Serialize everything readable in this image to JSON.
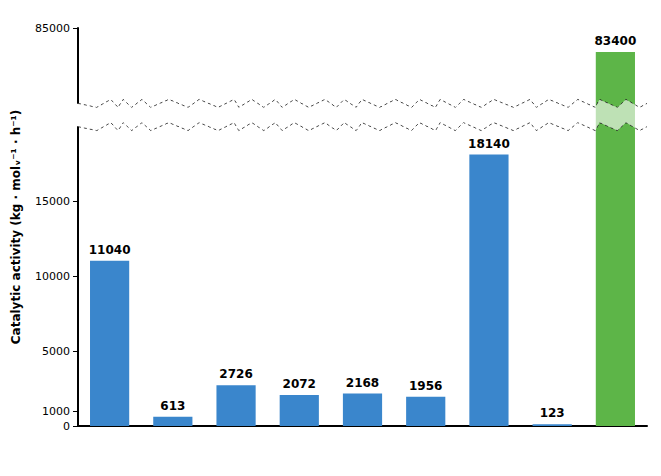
{
  "chart_data": {
    "type": "bar",
    "y_label": "Catalytic activity (kg · molᵥ⁻¹ · h⁻¹)",
    "categories": [
      null,
      null,
      null,
      null,
      null,
      null,
      null,
      null,
      null
    ],
    "values": [
      11040,
      613,
      2726,
      2072,
      2168,
      1956,
      18140,
      123,
      83400
    ],
    "colors": [
      "#3a86cc",
      "#3a86cc",
      "#3a86cc",
      "#3a86cc",
      "#3a86cc",
      "#3a86cc",
      "#3a86cc",
      "#3a86cc",
      "#5db548"
    ],
    "ylim": [
      0,
      85000
    ],
    "yticks": [
      0,
      1000,
      5000,
      10000,
      15000,
      85000
    ],
    "grid": false,
    "data_labels": true,
    "tick_labels": "y"
  }
}
